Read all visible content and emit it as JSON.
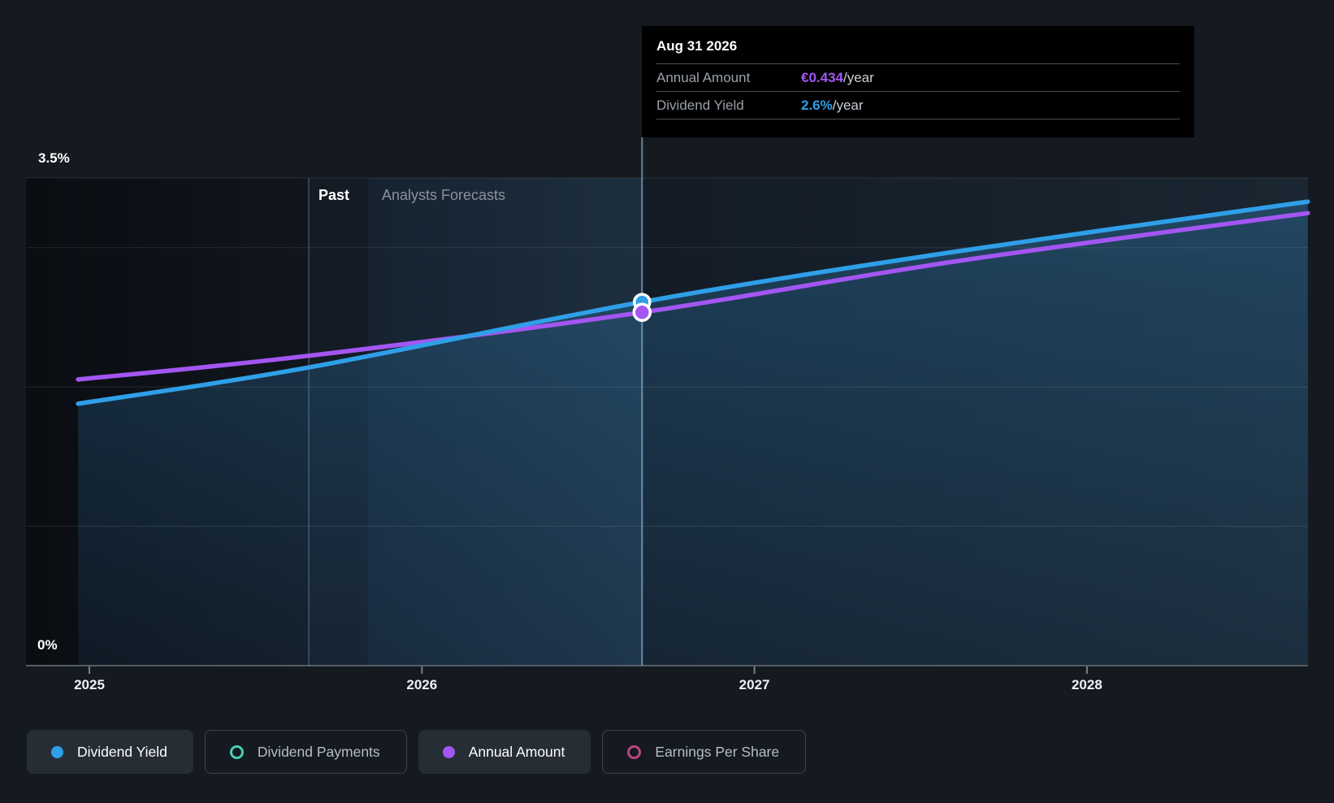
{
  "colors": {
    "page_bg": "#151a21",
    "blue": "#2f9fe8",
    "purple": "#a356f1",
    "teal": "#4ecdb6",
    "pink": "#bf4384",
    "gridline": "rgba(255,255,255,0.10)",
    "axis_line": "#565d66",
    "tick": "#788089",
    "divider_line": "rgba(160,205,235,0.30)",
    "hover_line": "rgba(175,215,245,0.55)"
  },
  "tooltip": {
    "title": "Aug 31 2026",
    "rows": [
      {
        "label": "Annual Amount",
        "value": "€0.434",
        "suffix": "/year",
        "value_color": "#a356f1"
      },
      {
        "label": "Dividend Yield",
        "value": "2.6%",
        "suffix": "/year",
        "value_color": "#2f9fe8"
      }
    ]
  },
  "chart": {
    "past_label": "Past",
    "forecast_label": "Analysts Forecasts",
    "y_axis": {
      "top_label": "3.5%",
      "bottom_label": "0%"
    },
    "x_axis": {
      "ticks": [
        "2025",
        "2026",
        "2027",
        "2028"
      ]
    }
  },
  "chart_data": {
    "type": "line",
    "title": "Dividend yield and annual amount: past and analysts forecasts",
    "x_unit": "year",
    "y_unit": "percent_yield",
    "ylim": [
      0,
      3.5
    ],
    "gridlines_pct": [
      0,
      1,
      2,
      3,
      3.5
    ],
    "x_ticks": [
      2025,
      2026,
      2027,
      2028
    ],
    "divider_x_year": 2025.66,
    "forecast_shade_from_x_year": 2025.836,
    "hover_x_year": 2026.662,
    "hover_date": "Aug 31 2026",
    "legend_position": "bottom",
    "grid": true,
    "series": [
      {
        "name": "Dividend Yield",
        "color": "#2f9fe8",
        "style": "area",
        "points": [
          [
            2024.966,
            1.88
          ],
          [
            2025.66,
            2.14
          ],
          [
            2026.662,
            2.61
          ],
          [
            2027.6,
            2.97
          ],
          [
            2028.664,
            3.33
          ]
        ],
        "marker": {
          "x": 2026.662,
          "y": 2.61,
          "label": "2.6%/year"
        }
      },
      {
        "name": "Annual Amount",
        "color": "#a356f1",
        "style": "line",
        "note": "plotted on the yield axis scale; hovered value is €0.434/year",
        "points": [
          [
            2024.966,
            2.054
          ],
          [
            2025.66,
            2.224
          ],
          [
            2026.662,
            2.536
          ],
          [
            2027.6,
            2.9
          ],
          [
            2028.664,
            3.248
          ]
        ],
        "marker": {
          "x": 2026.662,
          "y": 2.536,
          "label": "€0.434/year"
        }
      }
    ]
  },
  "legend": [
    {
      "label": "Dividend Yield",
      "color": "#2f9fe8",
      "selected": true,
      "marker": "filled"
    },
    {
      "label": "Dividend Payments",
      "color": "#4ecdb6",
      "selected": false,
      "marker": "ring"
    },
    {
      "label": "Annual Amount",
      "color": "#a356f1",
      "selected": true,
      "marker": "filled"
    },
    {
      "label": "Earnings Per Share",
      "color": "#bf4384",
      "selected": false,
      "marker": "ring"
    }
  ]
}
